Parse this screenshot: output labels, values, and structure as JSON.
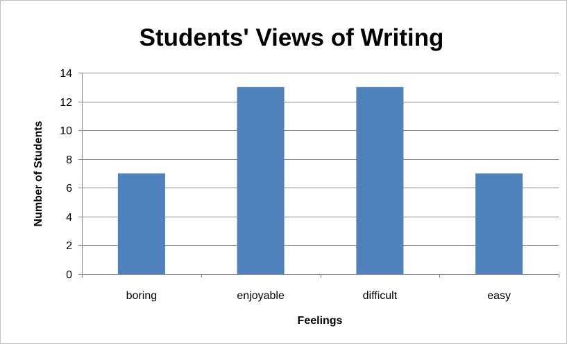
{
  "chart_data": {
    "type": "bar",
    "title": "Students' Views of Writing",
    "xlabel": "Feelings",
    "ylabel": "Number of Students",
    "categories": [
      "boring",
      "enjoyable",
      "difficult",
      "easy"
    ],
    "values": [
      7,
      13,
      13,
      7
    ],
    "ylim": [
      0,
      14
    ],
    "yticks": [
      0,
      2,
      4,
      6,
      8,
      10,
      12,
      14
    ],
    "grid": true,
    "legend": "none",
    "bar_color": "#4F81BD",
    "grid_color": "#868686"
  }
}
